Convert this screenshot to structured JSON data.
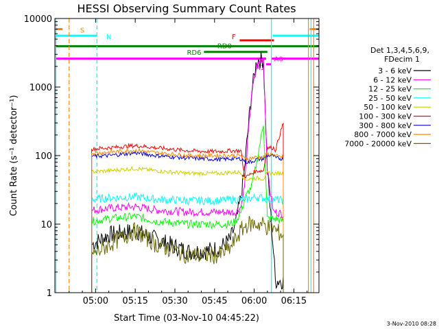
{
  "chart_data": {
    "type": "line",
    "title": "HESSI Observing Summary Count Rates",
    "xlabel": "Start Time (03-Nov-10 04:45:22)",
    "ylabel": "Count Rate (s⁻¹ detector⁻¹)",
    "yscale": "log",
    "ylim": [
      1,
      10000
    ],
    "xlim_minutes": [
      -0.4,
      99.5
    ],
    "xticks": [
      {
        "m": 15,
        "label": "05:00"
      },
      {
        "m": 30,
        "label": "05:15"
      },
      {
        "m": 45,
        "label": "05:30"
      },
      {
        "m": 60,
        "label": "05:45"
      },
      {
        "m": 75,
        "label": "06:00"
      },
      {
        "m": 90,
        "label": "06:15"
      }
    ],
    "yticks": [
      {
        "v": 1,
        "label": "1"
      },
      {
        "v": 10,
        "label": "10"
      },
      {
        "v": 100,
        "label": "100"
      },
      {
        "v": 1000,
        "label": "1000"
      },
      {
        "v": 10000,
        "label": "10000"
      }
    ],
    "legend_header": [
      "Det 1,3,4,5,6,9,",
      "FDecim 1"
    ],
    "legend_placement": "right",
    "x_units": "minutes after 04:45:22",
    "series": [
      {
        "name": "3 - 6 keV",
        "color": "#000000",
        "x": [
          13.5,
          20,
          30,
          38,
          50,
          56,
          62,
          66,
          68,
          70,
          71.3,
          72.5,
          74,
          76,
          78.5,
          80,
          82.3,
          83,
          86
        ],
        "y": [
          5,
          7,
          8,
          6,
          4,
          4,
          4.5,
          6,
          10,
          25,
          60,
          200,
          800,
          2500,
          2500,
          60,
          4,
          1.5,
          1.5
        ]
      },
      {
        "name": "6 - 12 keV",
        "color": "#ff00ff",
        "x": [
          13.5,
          20,
          30,
          38,
          50,
          56,
          62,
          66,
          68,
          70,
          71.3,
          72.5,
          74,
          76,
          78.5,
          80,
          82.3,
          83,
          86
        ],
        "y": [
          16,
          17,
          18,
          16,
          15,
          15,
          15,
          15,
          15,
          18,
          35,
          150,
          800,
          2000,
          2700,
          60,
          15,
          15,
          14
        ]
      },
      {
        "name": "12 - 25 keV",
        "color": "#00ff00",
        "x": [
          13.5,
          20,
          30,
          38,
          50,
          56,
          62,
          66,
          68,
          70,
          71.3,
          72.5,
          74,
          76,
          78.5,
          80,
          82.3,
          83,
          86
        ],
        "y": [
          11,
          12,
          13,
          11,
          10,
          10,
          10,
          10,
          11,
          15,
          22,
          28,
          35,
          80,
          300,
          12,
          12,
          12,
          11
        ]
      },
      {
        "name": "25 - 50 keV",
        "color": "#00ffff",
        "x": [
          13.5,
          20,
          30,
          38,
          50,
          56,
          62,
          66,
          68,
          70,
          71.3,
          72.5,
          74,
          76,
          78.5,
          80,
          82.3,
          83,
          86
        ],
        "y": [
          23,
          24,
          25,
          23,
          22,
          22,
          22,
          23,
          23,
          23,
          23,
          23,
          24,
          25,
          24,
          23,
          23,
          23,
          22
        ]
      },
      {
        "name": "50 - 100 keV",
        "color": "#d0d000",
        "x": [
          13.5,
          20,
          30,
          38,
          50,
          56,
          62,
          66,
          68,
          70,
          71.3,
          72.5,
          74,
          76,
          78.5,
          80,
          82.3,
          83,
          86
        ],
        "y": [
          58,
          60,
          65,
          60,
          55,
          55,
          55,
          57,
          57,
          57,
          45,
          45,
          46,
          47,
          46,
          55,
          55,
          55,
          55
        ]
      },
      {
        "name": "100 - 300 keV",
        "color": "#ff0000",
        "x": [
          13.5,
          20,
          30,
          38,
          50,
          56,
          62,
          66,
          68,
          70,
          71.3,
          72.5,
          74,
          76,
          78.5,
          80,
          82.3,
          83,
          86
        ],
        "y": [
          125,
          130,
          140,
          130,
          118,
          115,
          115,
          118,
          118,
          118,
          50,
          50,
          55,
          60,
          60,
          130,
          130,
          120,
          300
        ]
      },
      {
        "name": "300 - 800 keV",
        "color": "#0000cc",
        "x": [
          13.5,
          20,
          30,
          38,
          50,
          56,
          62,
          66,
          68,
          70,
          71.3,
          72.5,
          74,
          76,
          78.5,
          80,
          82.3,
          83,
          86
        ],
        "y": [
          98,
          100,
          110,
          100,
          92,
          90,
          88,
          90,
          90,
          90,
          85,
          80,
          82,
          88,
          90,
          100,
          100,
          92,
          90
        ]
      },
      {
        "name": "800 - 7000 keV",
        "color": "#ff8800",
        "x": [
          13.5,
          20,
          30,
          38,
          50,
          56,
          62,
          66,
          68,
          70,
          71.3,
          72.5,
          74,
          76,
          78.5,
          80,
          82.3,
          83,
          86
        ],
        "y": [
          108,
          112,
          120,
          110,
          100,
          100,
          100,
          100,
          100,
          100,
          90,
          90,
          92,
          95,
          95,
          105,
          105,
          98,
          95
        ]
      },
      {
        "name": "7000 - 20000 keV",
        "color": "#666600",
        "x": [
          13.5,
          20,
          30,
          38,
          50,
          56,
          62,
          66,
          68,
          70,
          71.3,
          72.5,
          74,
          76,
          78.5,
          80,
          82.3,
          83,
          86
        ],
        "y": [
          3.5,
          5,
          8,
          5,
          3.5,
          3.5,
          3.5,
          4.5,
          6,
          8,
          9,
          10,
          10,
          10,
          10,
          9,
          9,
          8,
          7
        ]
      }
    ],
    "vlines": [
      {
        "m": 0,
        "color": "#00ffff",
        "dash": false
      },
      {
        "m": 5,
        "color": "#ff8800",
        "dash": true
      },
      {
        "m": 15.5,
        "color": "#00ffff",
        "dash": true
      },
      {
        "m": 81.5,
        "color": "#00ffff",
        "dash": false
      },
      {
        "m": 95.5,
        "color": "#ff8800",
        "dash": false
      },
      {
        "m": 96.5,
        "color": "#00ffff",
        "dash": false
      },
      {
        "m": 97.5,
        "color": "#ff8800",
        "dash": false
      }
    ],
    "status_lines": [
      {
        "label": "S",
        "color": "#ff8800",
        "segments": [
          [
            0,
            2.5
          ],
          [
            96,
            99.5
          ]
        ],
        "y": 7000
      },
      {
        "label": "N",
        "color": "#00ffff",
        "segments": [
          [
            0,
            15.5
          ],
          [
            82,
            99.5
          ]
        ],
        "y": 5600
      },
      {
        "label": "F",
        "color": "#ff0000",
        "segments": [
          [
            69.5,
            82.5
          ]
        ],
        "y": 4800
      },
      {
        "label": "RD0",
        "color": "#008000",
        "segments": [
          [
            0,
            99.5
          ]
        ],
        "y": 3950
      },
      {
        "label": "RD6",
        "color": "#008000",
        "segments": [
          [
            56,
            80
          ]
        ],
        "y": 3250
      },
      {
        "label": "A0",
        "color": "#ff00ff",
        "segments": [
          [
            0,
            79.5
          ],
          [
            81.5,
            99.5
          ]
        ],
        "y": 2600
      },
      {
        "label": "A1",
        "color": "#ff00ff",
        "segments": [
          [
            79.5,
            81.5
          ]
        ],
        "y": 2150
      }
    ],
    "timestamp": "3-Nov-2010 08:28"
  }
}
